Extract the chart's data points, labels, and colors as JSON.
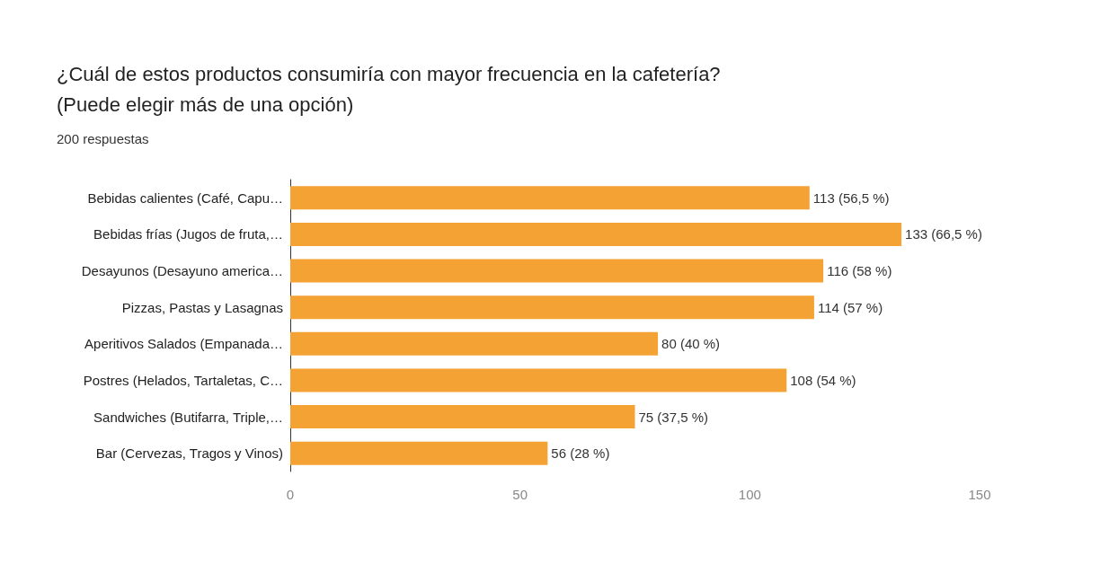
{
  "chart_data": {
    "type": "bar",
    "orientation": "horizontal",
    "title": "¿Cuál de estos productos consumiría con mayor frecuencia en la cafetería?\n(Puede elegir más de una opción)",
    "subtitle": "200 respuestas",
    "categories": [
      "Bebidas calientes (Café, Capu…",
      "Bebidas frías (Jugos de fruta,…",
      "Desayunos (Desayuno america…",
      "Pizzas, Pastas y Lasagnas",
      "Aperitivos Salados (Empanada…",
      "Postres (Helados, Tartaletas, C…",
      "Sandwiches (Butifarra, Triple,…",
      "Bar (Cervezas, Tragos y Vinos)"
    ],
    "values": [
      113,
      133,
      116,
      114,
      80,
      108,
      75,
      56
    ],
    "value_labels": [
      "113 (56,5 %)",
      "133 (66,5 %)",
      "116 (58 %)",
      "114 (57 %)",
      "80 (40 %)",
      "108 (54 %)",
      "75 (37,5 %)",
      "56 (28 %)"
    ],
    "color": "#f4a233",
    "xlim": [
      0,
      150
    ],
    "xticks": [
      0,
      50,
      100,
      150
    ],
    "grid": false
  }
}
